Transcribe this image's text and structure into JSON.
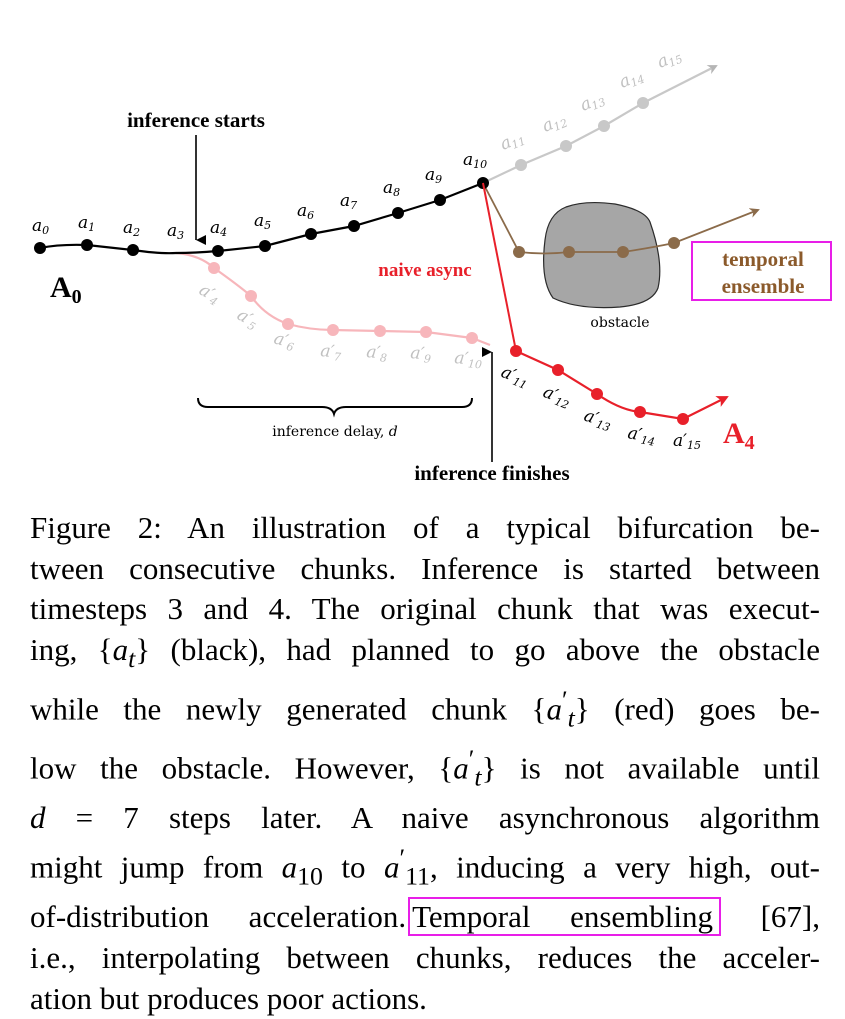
{
  "figure": {
    "labels": {
      "inference_starts": "inference starts",
      "inference_finishes": "inference finishes",
      "naive_async": "naive async",
      "temporal_ensemble_1": "temporal",
      "temporal_ensemble_2": "ensemble",
      "obstacle": "obstacle",
      "inference_delay": "inference delay, ",
      "inference_delay_var": "d",
      "A0_main": "A",
      "A0_sub": "0",
      "A4_main": "A",
      "A4_sub": "4"
    },
    "black_actions": [
      "0",
      "1",
      "2",
      "3",
      "4",
      "5",
      "6",
      "7",
      "8",
      "9",
      "10"
    ],
    "grey_actions": [
      "11",
      "12",
      "13",
      "14",
      "15"
    ],
    "pink_actions": [
      "4",
      "5",
      "6",
      "7",
      "8",
      "9",
      "10"
    ],
    "red_actions": [
      "11",
      "12",
      "13",
      "14",
      "15"
    ],
    "colors": {
      "black": "#000000",
      "grey": "#c0c0c0",
      "pink": "#f7b6bb",
      "red": "#e8202a",
      "brown": "#8b6b4a",
      "obstacle": "#a6a6a6",
      "magenta": "#e81ee8",
      "label_brown": "#8b5a2b"
    }
  },
  "caption": {
    "l1": "Figure 2:  An illustration of a typical bifurcation be-",
    "l2": "tween consecutive chunks. Inference is started between",
    "l3": "timesteps 3 and 4. The original chunk that was execut-",
    "l4a": "ing, {",
    "l4b": "a",
    "l4c": "t",
    "l4d": "} (black), had planned to go above the obstacle",
    "l5a": "while the newly generated chunk {",
    "l5b": "a",
    "l5c": "′",
    "l5d": "t",
    "l5e": "} (red) goes be-",
    "l6a": "low the obstacle. However, {",
    "l6b": "a",
    "l6c": "′",
    "l6d": "t",
    "l6e": "} is not available until",
    "l7a": "d",
    "l7b": " = 7 steps later.  A naive asynchronous algorithm",
    "l8a": "might jump from ",
    "l8b": "a",
    "l8c": "10",
    "l8d": " to ",
    "l8e": "a",
    "l8f": "′",
    "l8g": "11",
    "l8h": ", inducing a very high, out-",
    "l9a": "of-distribution acceleration.",
    "l9b": "Temporal ensembling",
    "l9c": " [67],",
    "l10": "i.e., interpolating between chunks, reduces the acceler-",
    "l11": "ation but produces poor actions."
  }
}
